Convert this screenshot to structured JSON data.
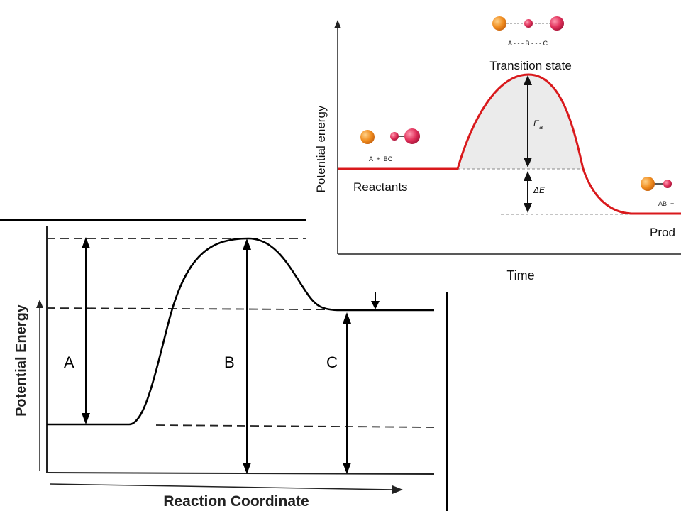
{
  "top_diagram": {
    "y_label": "Potential energy",
    "x_label": "Time",
    "transition_label": "Transition state",
    "transition_molecule_label": "A - - - B - - - C",
    "reactants_label": "Reactants",
    "reactants_molecule_label": "A  +  BC",
    "products_label": "Prod",
    "products_molecule_label": "AB  +",
    "ea_label": "E",
    "ea_subscript": "a",
    "delta_e_label": "ΔE",
    "curve_color": "#d9191c",
    "shade_color": "#ebebeb",
    "atom_a_color": "#f08c1e",
    "atom_b_color": "#e0305a"
  },
  "bottom_diagram": {
    "y_label": "Potential Energy",
    "x_label": "Reaction Coordinate",
    "label_a": "A",
    "label_b": "B",
    "label_c": "C"
  }
}
